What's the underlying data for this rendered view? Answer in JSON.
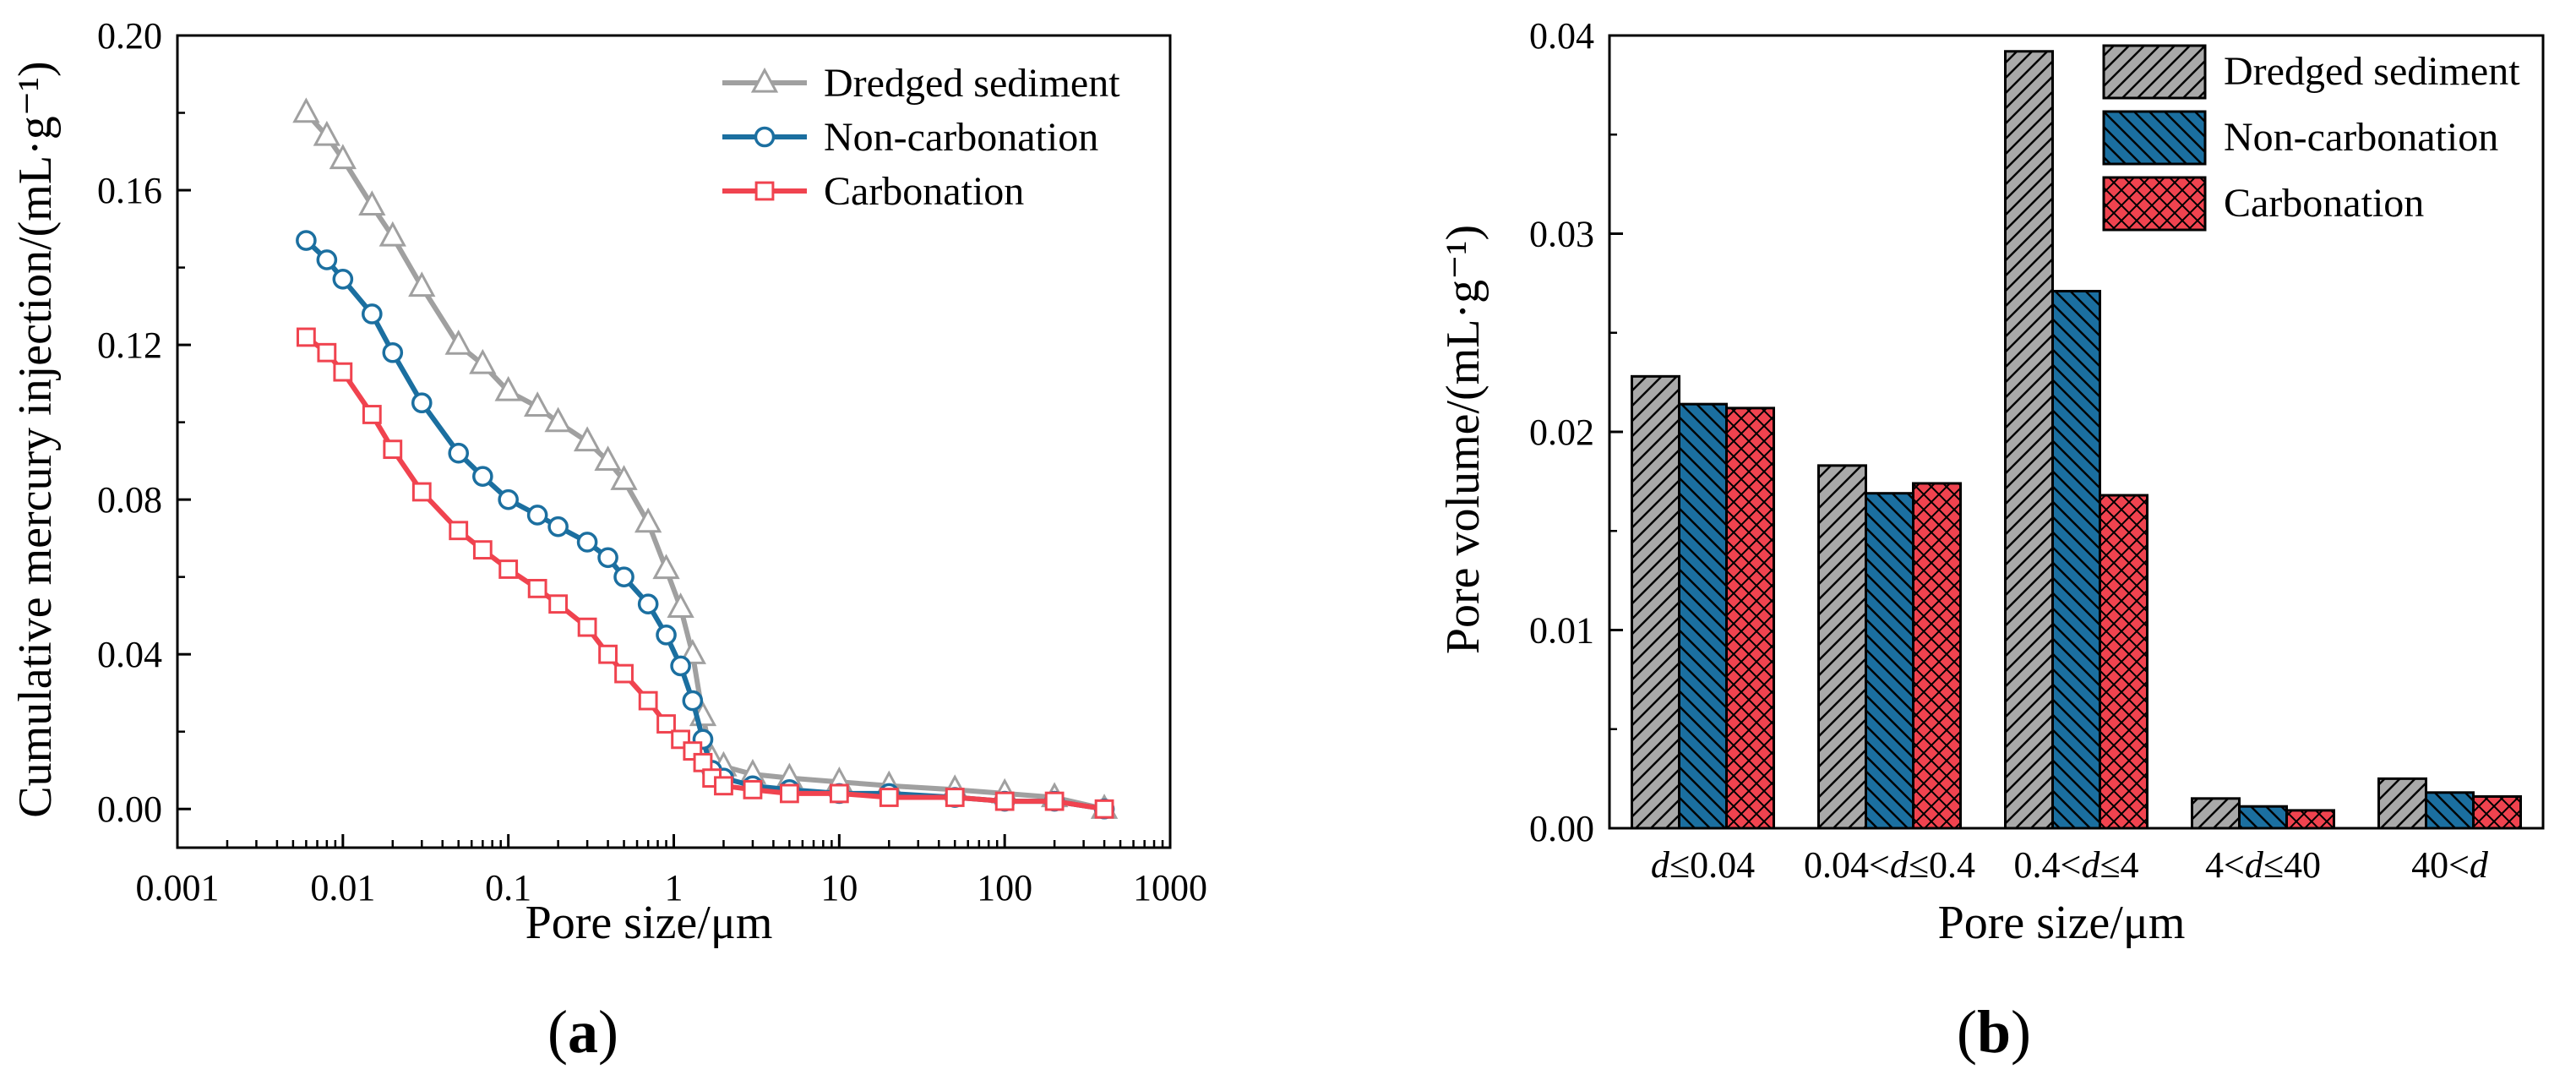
{
  "chart_data": [
    {
      "type": "line",
      "panel_label": "(a)",
      "x_scale": "log",
      "xlabel": "Pore size/μm",
      "ylabel": "Cumulative mercury injection/(mL·g⁻¹)",
      "xlim": [
        0.001,
        1000
      ],
      "ylim": [
        -0.01,
        0.2
      ],
      "x_ticks": [
        0.001,
        0.01,
        0.1,
        1,
        10,
        100,
        1000
      ],
      "x_tick_labels": [
        "0.001",
        "0.01",
        "0.1",
        "1",
        "10",
        "100",
        "1000"
      ],
      "y_ticks": [
        0.0,
        0.04,
        0.08,
        0.12,
        0.16,
        0.2
      ],
      "y_tick_labels": [
        "0.00",
        "0.04",
        "0.08",
        "0.12",
        "0.16",
        "0.20"
      ],
      "legend_position": "top-right",
      "series": [
        {
          "name": "Dredged sediment",
          "color": "#a0a0a0",
          "marker": "triangle",
          "points": [
            [
              0.006,
              0.18
            ],
            [
              0.008,
              0.174
            ],
            [
              0.01,
              0.168
            ],
            [
              0.015,
              0.156
            ],
            [
              0.02,
              0.148
            ],
            [
              0.03,
              0.135
            ],
            [
              0.05,
              0.12
            ],
            [
              0.07,
              0.115
            ],
            [
              0.1,
              0.108
            ],
            [
              0.15,
              0.104
            ],
            [
              0.2,
              0.1
            ],
            [
              0.3,
              0.095
            ],
            [
              0.4,
              0.09
            ],
            [
              0.5,
              0.085
            ],
            [
              0.7,
              0.074
            ],
            [
              0.9,
              0.062
            ],
            [
              1.1,
              0.052
            ],
            [
              1.3,
              0.04
            ],
            [
              1.5,
              0.024
            ],
            [
              1.7,
              0.013
            ],
            [
              2,
              0.011
            ],
            [
              3,
              0.009
            ],
            [
              5,
              0.008
            ],
            [
              10,
              0.007
            ],
            [
              20,
              0.006
            ],
            [
              50,
              0.005
            ],
            [
              100,
              0.004
            ],
            [
              200,
              0.003
            ],
            [
              400,
              0.0
            ]
          ]
        },
        {
          "name": "Non-carbonation",
          "color": "#1b6fa0",
          "marker": "circle",
          "points": [
            [
              0.006,
              0.147
            ],
            [
              0.008,
              0.142
            ],
            [
              0.01,
              0.137
            ],
            [
              0.015,
              0.128
            ],
            [
              0.02,
              0.118
            ],
            [
              0.03,
              0.105
            ],
            [
              0.05,
              0.092
            ],
            [
              0.07,
              0.086
            ],
            [
              0.1,
              0.08
            ],
            [
              0.15,
              0.076
            ],
            [
              0.2,
              0.073
            ],
            [
              0.3,
              0.069
            ],
            [
              0.4,
              0.065
            ],
            [
              0.5,
              0.06
            ],
            [
              0.7,
              0.053
            ],
            [
              0.9,
              0.045
            ],
            [
              1.1,
              0.037
            ],
            [
              1.3,
              0.028
            ],
            [
              1.5,
              0.018
            ],
            [
              1.7,
              0.01
            ],
            [
              2,
              0.008
            ],
            [
              3,
              0.006
            ],
            [
              5,
              0.005
            ],
            [
              10,
              0.004
            ],
            [
              20,
              0.004
            ],
            [
              50,
              0.003
            ],
            [
              100,
              0.002
            ],
            [
              200,
              0.002
            ],
            [
              400,
              0.0
            ]
          ]
        },
        {
          "name": "Carbonation",
          "color": "#f0434f",
          "marker": "square",
          "points": [
            [
              0.006,
              0.122
            ],
            [
              0.008,
              0.118
            ],
            [
              0.01,
              0.113
            ],
            [
              0.015,
              0.102
            ],
            [
              0.02,
              0.093
            ],
            [
              0.03,
              0.082
            ],
            [
              0.05,
              0.072
            ],
            [
              0.07,
              0.067
            ],
            [
              0.1,
              0.062
            ],
            [
              0.15,
              0.057
            ],
            [
              0.2,
              0.053
            ],
            [
              0.3,
              0.047
            ],
            [
              0.4,
              0.04
            ],
            [
              0.5,
              0.035
            ],
            [
              0.7,
              0.028
            ],
            [
              0.9,
              0.022
            ],
            [
              1.1,
              0.018
            ],
            [
              1.3,
              0.015
            ],
            [
              1.5,
              0.012
            ],
            [
              1.7,
              0.008
            ],
            [
              2,
              0.006
            ],
            [
              3,
              0.005
            ],
            [
              5,
              0.004
            ],
            [
              10,
              0.004
            ],
            [
              20,
              0.003
            ],
            [
              50,
              0.003
            ],
            [
              100,
              0.002
            ],
            [
              200,
              0.002
            ],
            [
              400,
              0.0
            ]
          ]
        }
      ]
    },
    {
      "type": "bar",
      "panel_label": "(b)",
      "xlabel": "Pore size/μm",
      "ylabel": "Pore volume/(mL·g⁻¹)",
      "ylim": [
        0,
        0.04
      ],
      "y_ticks": [
        0.0,
        0.01,
        0.02,
        0.03,
        0.04
      ],
      "y_tick_labels": [
        "0.00",
        "0.01",
        "0.02",
        "0.03",
        "0.04"
      ],
      "categories": [
        {
          "pre": "",
          "var": "d",
          "post": "≤0.04"
        },
        {
          "pre": "0.04<",
          "var": "d",
          "post": "≤0.4"
        },
        {
          "pre": "0.4<",
          "var": "d",
          "post": "≤4"
        },
        {
          "pre": "4<",
          "var": "d",
          "post": "≤40"
        },
        {
          "pre": "40<",
          "var": "d",
          "post": ""
        }
      ],
      "legend_position": "top-right",
      "series": [
        {
          "name": "Dredged sediment",
          "color": "#a9a9a9",
          "pattern": "diagonal-up",
          "values": [
            0.0228,
            0.0183,
            0.0392,
            0.0015,
            0.0025
          ]
        },
        {
          "name": "Non-carbonation",
          "color": "#1b6fa0",
          "pattern": "diagonal-down",
          "values": [
            0.0214,
            0.0169,
            0.0271,
            0.0011,
            0.0018
          ]
        },
        {
          "name": "Carbonation",
          "color": "#f0434f",
          "pattern": "crosshatch",
          "values": [
            0.0212,
            0.0174,
            0.0168,
            0.0009,
            0.0016
          ]
        }
      ]
    }
  ]
}
